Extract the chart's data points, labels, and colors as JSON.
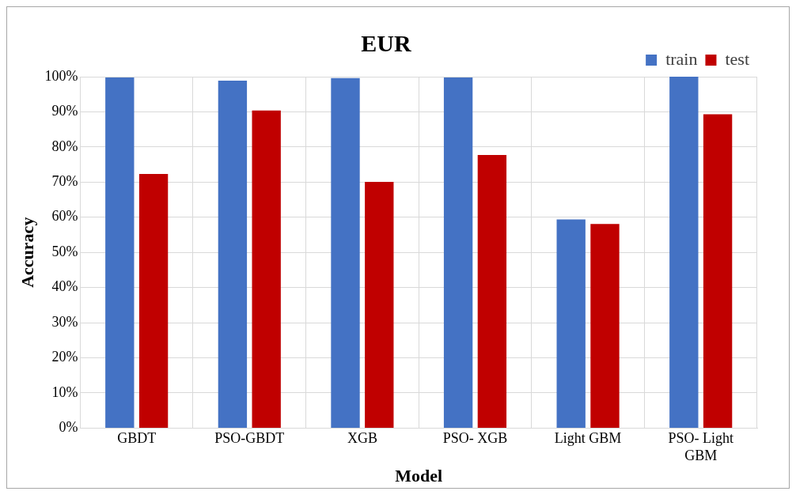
{
  "chart_data": {
    "type": "bar",
    "title": "EUR",
    "xlabel": "Model",
    "ylabel": "Accuracy",
    "categories": [
      "GBDT",
      "PSO-GBDT",
      "XGB",
      "PSO- XGB",
      "Light GBM",
      "PSO- Light GBM"
    ],
    "series": [
      {
        "name": "train",
        "color": "#4472c4",
        "values": [
          99.8,
          98.9,
          99.6,
          99.8,
          59.4,
          100
        ]
      },
      {
        "name": "test",
        "color": "#c00000",
        "values": [
          72.3,
          90.4,
          70.1,
          77.7,
          58.1,
          89.3
        ]
      }
    ],
    "ylim": [
      0,
      100
    ],
    "yticks": [
      {
        "value": 0,
        "label": "0%"
      },
      {
        "value": 10,
        "label": "10%"
      },
      {
        "value": 20,
        "label": "20%"
      },
      {
        "value": 30,
        "label": "30%"
      },
      {
        "value": 40,
        "label": "40%"
      },
      {
        "value": 50,
        "label": "50%"
      },
      {
        "value": 60,
        "label": "60%"
      },
      {
        "value": 70,
        "label": "70%"
      },
      {
        "value": 80,
        "label": "80%"
      },
      {
        "value": 90,
        "label": "90%"
      },
      {
        "value": 100,
        "label": "100%"
      }
    ],
    "grid": true,
    "legend": "top right"
  }
}
